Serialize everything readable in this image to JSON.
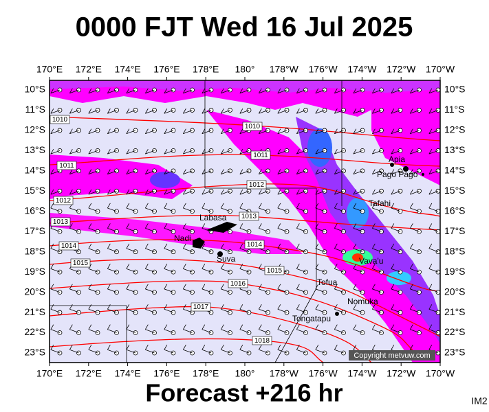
{
  "title": "0000 FJT Wed 16 Jul 2025",
  "footer": "Forecast +216 hr",
  "corner": "IM2",
  "copyright": "Copyright metvuw.com",
  "longitudes": [
    "170°E",
    "172°E",
    "174°E",
    "176°E",
    "178°E",
    "180°",
    "178°W",
    "176°W",
    "174°W",
    "172°W",
    "170°W"
  ],
  "latitudes": [
    "10°S",
    "11°S",
    "12°S",
    "13°S",
    "14°S",
    "15°S",
    "16°S",
    "17°S",
    "18°S",
    "19°S",
    "20°S",
    "21°S",
    "22°S",
    "23°S"
  ],
  "isobar_labels": [
    "1010",
    "1010",
    "1011",
    "1011",
    "1012",
    "1012",
    "1013",
    "1013",
    "1014",
    "1014",
    "1015",
    "1015",
    "1016",
    "1017",
    "1018"
  ],
  "places": [
    "Apia",
    "Pago Pago",
    "Tafahi",
    "Labasa",
    "Nadi",
    "Suva",
    "Vava'u",
    "Tofua",
    "Nomuka",
    "Tongatapu"
  ]
}
